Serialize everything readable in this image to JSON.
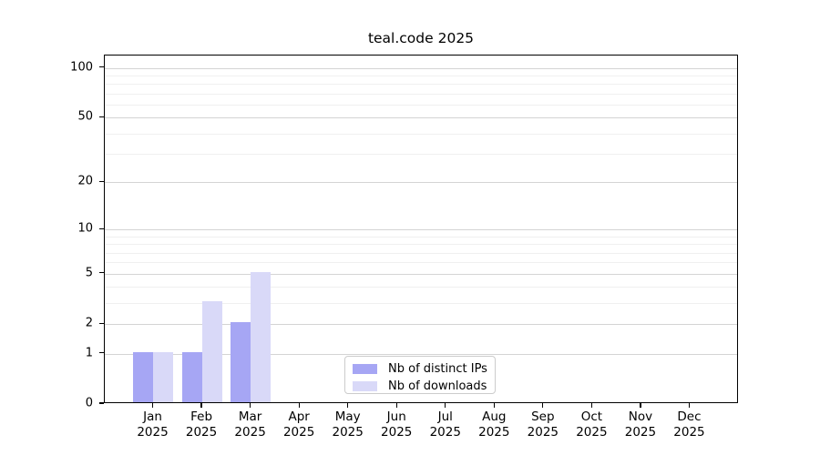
{
  "chart_data": {
    "type": "bar",
    "title": "teal.code 2025",
    "categories": [
      "Jan",
      "Feb",
      "Mar",
      "Apr",
      "May",
      "Jun",
      "Jul",
      "Aug",
      "Sep",
      "Oct",
      "Nov",
      "Dec"
    ],
    "category_year": "2025",
    "series": [
      {
        "name": "Nb of distinct IPs",
        "color": "#a6a6f4",
        "values": [
          1,
          1,
          2,
          0,
          0,
          0,
          0,
          0,
          0,
          0,
          0,
          0
        ]
      },
      {
        "name": "Nb of downloads",
        "color": "#d9d9f8",
        "values": [
          1,
          3,
          5,
          0,
          0,
          0,
          0,
          0,
          0,
          0,
          0,
          0
        ]
      }
    ],
    "yscale": "log1p",
    "ylim": [
      0,
      100
    ],
    "yticks": [
      0,
      1,
      2,
      5,
      10,
      20,
      50,
      100
    ],
    "yticks_minor": [
      3,
      4,
      6,
      7,
      8,
      9,
      30,
      40,
      60,
      70,
      80,
      90
    ],
    "grid": "horizontal",
    "legend_position": "lower-center-inside",
    "colors": {
      "axis": "#000000",
      "grid_major": "#d4d4d4",
      "grid_minor": "#f0f0f0",
      "background": "#ffffff"
    }
  }
}
